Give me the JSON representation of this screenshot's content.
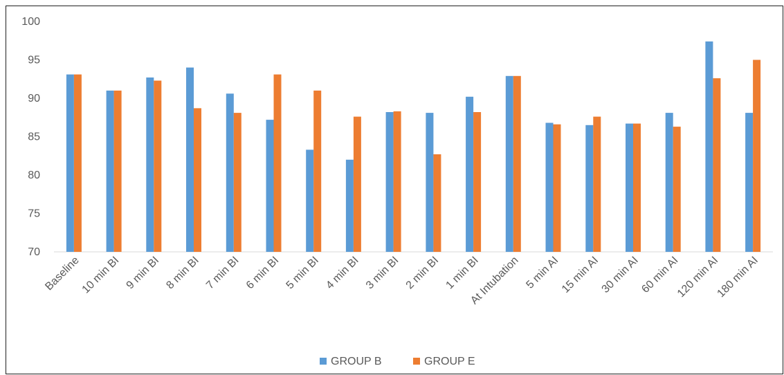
{
  "chart_data": {
    "type": "bar",
    "title": "",
    "xlabel": "",
    "ylabel": "",
    "ylim": [
      70,
      100
    ],
    "yticks": [
      70,
      75,
      80,
      85,
      90,
      95,
      100
    ],
    "grid": false,
    "legend_position": "bottom",
    "categories": [
      "Baseline",
      "10 min BI",
      "9 min BI",
      "8 min BI",
      "7 min BI",
      "6 min BI",
      "5 min BI",
      "4 min BI",
      "3 min BI",
      "2 min BI",
      "1 min BI",
      "At Intubation",
      "5 min AI",
      "15 min AI",
      "30 min AI",
      "60 min AI",
      "120 min AI",
      "180 min AI"
    ],
    "series": [
      {
        "name": "GROUP B",
        "color": "#5B9BD5",
        "values": [
          93.1,
          91.0,
          92.7,
          94.0,
          90.6,
          87.2,
          83.3,
          82.0,
          88.2,
          88.1,
          90.2,
          92.9,
          86.8,
          86.5,
          86.7,
          88.1,
          97.4,
          88.1
        ]
      },
      {
        "name": "GROUP E",
        "color": "#ED7D31",
        "values": [
          93.1,
          91.0,
          92.3,
          88.7,
          88.1,
          93.1,
          91.0,
          87.6,
          88.3,
          82.7,
          88.2,
          92.9,
          86.6,
          87.6,
          86.7,
          86.3,
          92.6,
          95.0
        ]
      }
    ]
  }
}
